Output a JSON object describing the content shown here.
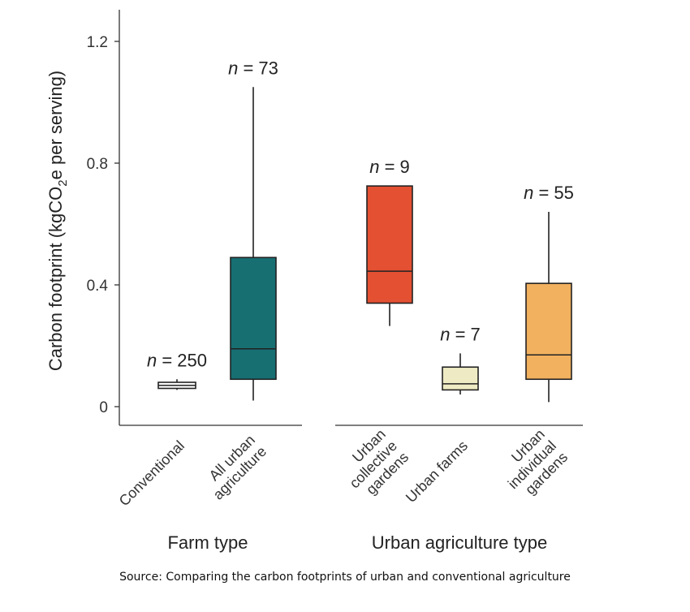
{
  "chart_data": {
    "type": "box",
    "ylabel_parts": [
      "Carbon footprint (kgCO",
      "2",
      "e per serving)"
    ],
    "ylim": [
      0,
      1.3
    ],
    "yticks": [
      0,
      0.4,
      0.8,
      1.2
    ],
    "ytick_labels": [
      "0",
      "0.4",
      "0.8",
      "1.2"
    ],
    "groups": [
      {
        "label": "Farm type",
        "boxes": [
          {
            "name": "conventional",
            "label_lines": [
              "Conventional"
            ],
            "n_label": "250",
            "min": 0.055,
            "q1": 0.06,
            "median": 0.07,
            "q3": 0.08,
            "max": 0.09,
            "color": "#ffffff"
          },
          {
            "name": "all-urban-agriculture",
            "label_lines": [
              "All urban",
              "agriculture"
            ],
            "n_label": "73",
            "min": 0.02,
            "q1": 0.09,
            "median": 0.19,
            "q3": 0.49,
            "max": 1.05,
            "color": "#176f72"
          }
        ]
      },
      {
        "label": "Urban agriculture type",
        "boxes": [
          {
            "name": "urban-collective-gardens",
            "label_lines": [
              "Urban",
              "collective",
              "gardens"
            ],
            "n_label": "9",
            "min": 0.265,
            "q1": 0.34,
            "median": 0.445,
            "q3": 0.725,
            "max": 0.725,
            "color": "#e35032"
          },
          {
            "name": "urban-farms",
            "label_lines": [
              "Urban farms"
            ],
            "n_label": "7",
            "min": 0.04,
            "q1": 0.055,
            "median": 0.075,
            "q3": 0.13,
            "max": 0.175,
            "color": "#eeebc4"
          },
          {
            "name": "urban-individual-gardens",
            "label_lines": [
              "Urban",
              "individual",
              "gardens"
            ],
            "n_label": "55",
            "min": 0.015,
            "q1": 0.09,
            "median": 0.17,
            "q3": 0.405,
            "max": 0.64,
            "color": "#f2b15f"
          }
        ]
      }
    ]
  },
  "source": "Source: Comparing the carbon footprints of urban and conventional agriculture"
}
